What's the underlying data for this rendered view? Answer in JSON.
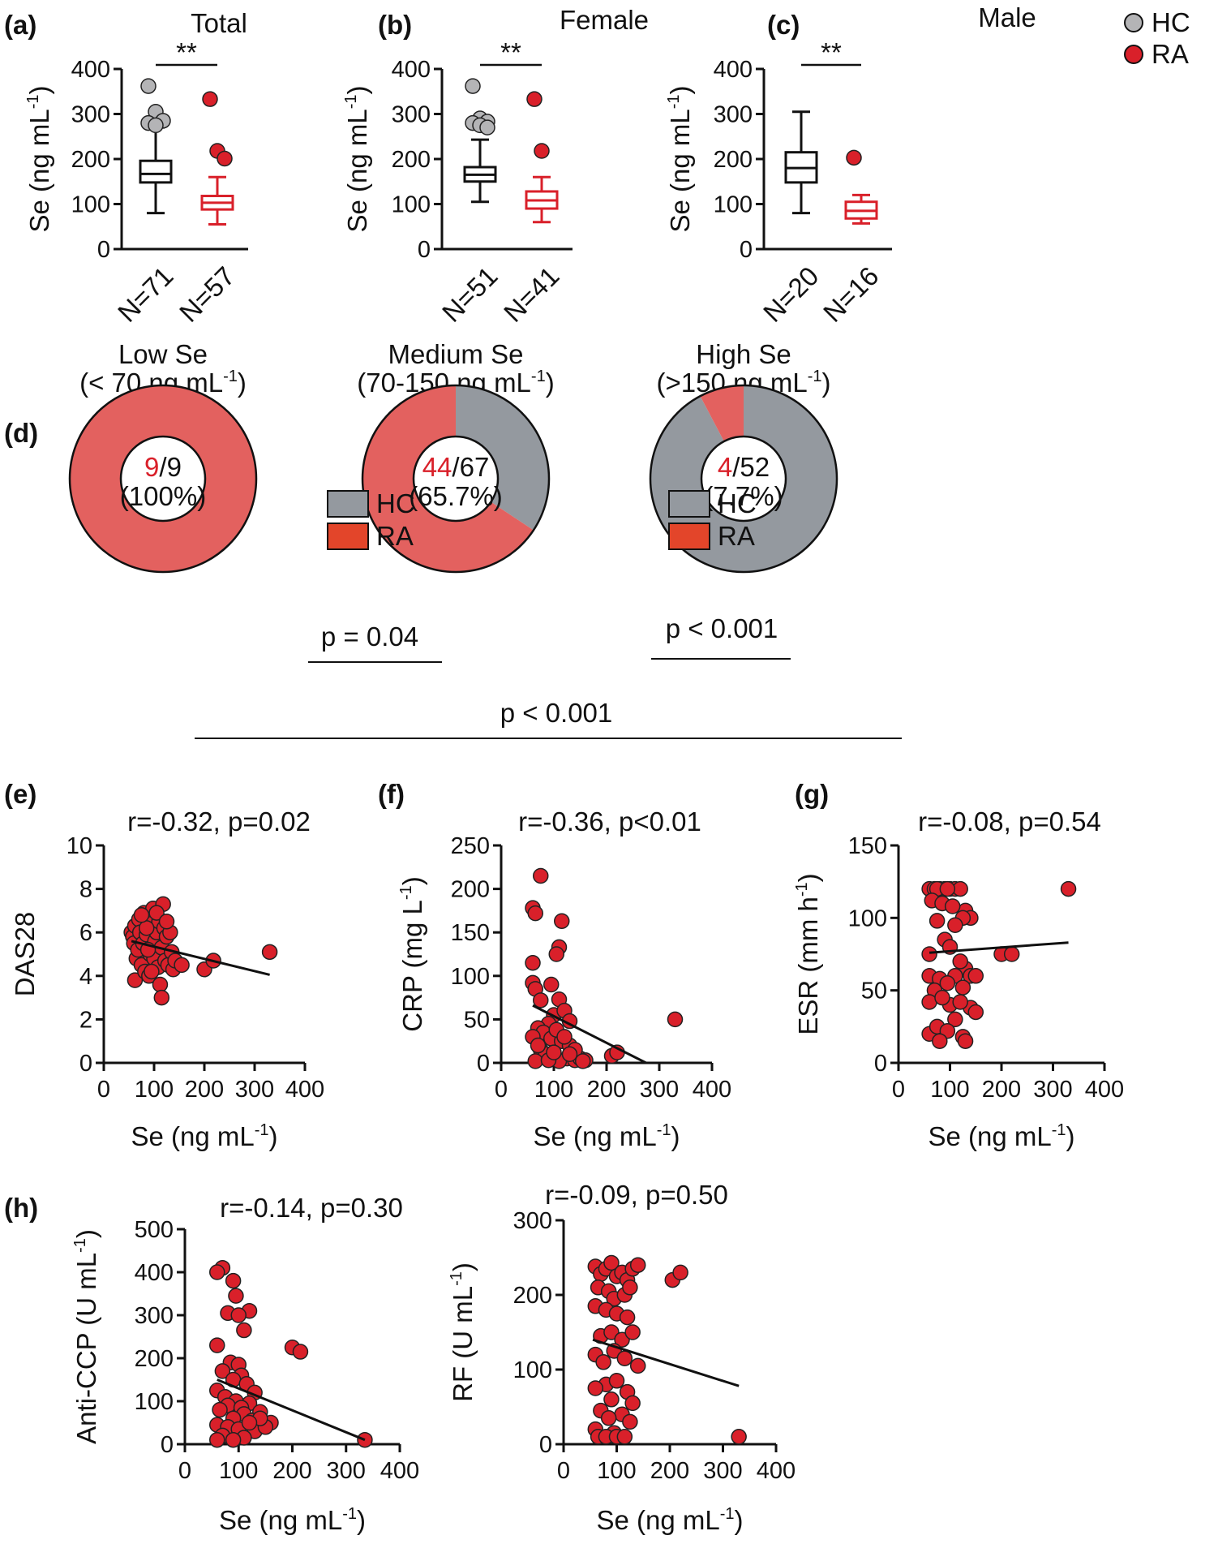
{
  "colors": {
    "hc": "#b4b4b6",
    "ra": "#d9202a",
    "hc_donut": "#94999f",
    "ra_donut": "#e3615f",
    "ra_legend_donut": "#e3452a",
    "axis": "#111111"
  },
  "legend": {
    "hc": "HC",
    "ra": "RA"
  },
  "chart_data": [
    {
      "panel": "(a)",
      "type": "box",
      "title": "Total",
      "ylabel": "Se (ng mL-1)",
      "ylim": [
        0,
        400
      ],
      "yticks": [
        "0",
        "100",
        "200",
        "300",
        "400"
      ],
      "categories": [
        "N=71",
        "N=57"
      ],
      "significance": "**",
      "series": [
        {
          "group": "HC",
          "q1": 148,
          "median": 167,
          "q3": 196,
          "whisker_low": 80,
          "whisker_high": 270,
          "outliers": [
            362,
            305,
            285,
            280,
            275
          ]
        },
        {
          "group": "RA",
          "q1": 88,
          "median": 103,
          "q3": 118,
          "whisker_low": 55,
          "whisker_high": 160,
          "outliers": [
            333,
            218,
            201
          ]
        }
      ]
    },
    {
      "panel": "(b)",
      "type": "box",
      "title": "Female",
      "ylabel": "Se (ng mL-1)",
      "ylim": [
        0,
        400
      ],
      "yticks": [
        "0",
        "100",
        "200",
        "300",
        "400"
      ],
      "categories": [
        "N=51",
        "N=41"
      ],
      "significance": "**",
      "series": [
        {
          "group": "HC",
          "q1": 150,
          "median": 165,
          "q3": 182,
          "whisker_low": 105,
          "whisker_high": 243,
          "outliers": [
            362,
            290,
            283,
            280,
            275,
            270
          ]
        },
        {
          "group": "RA",
          "q1": 90,
          "median": 108,
          "q3": 128,
          "whisker_low": 60,
          "whisker_high": 160,
          "outliers": [
            333,
            218
          ]
        }
      ]
    },
    {
      "panel": "(c)",
      "type": "box",
      "title": "Male",
      "ylabel": "Se (ng mL-1)",
      "ylim": [
        0,
        400
      ],
      "yticks": [
        "0",
        "100",
        "200",
        "300",
        "400"
      ],
      "categories": [
        "N=20",
        "N=16"
      ],
      "significance": "**",
      "series": [
        {
          "group": "HC",
          "q1": 148,
          "median": 180,
          "q3": 215,
          "whisker_low": 80,
          "whisker_high": 305,
          "outliers": []
        },
        {
          "group": "RA",
          "q1": 68,
          "median": 85,
          "q3": 105,
          "whisker_low": 57,
          "whisker_high": 120,
          "outliers": [
            203
          ]
        }
      ]
    },
    {
      "panel": "(d)",
      "type": "pie",
      "donuts": [
        {
          "title": "Low Se",
          "subtitle": "(< 70 ng mL-1)",
          "ra_count": "9",
          "total": "/9",
          "percent": "(100%)",
          "ra_fraction": 1.0
        },
        {
          "title": "Medium Se",
          "subtitle": "(70-150 ng mL-1)",
          "ra_count": "44",
          "total": "/67",
          "percent": "(65.7%)",
          "ra_fraction": 0.657
        },
        {
          "title": "High Se",
          "subtitle": "(>150 ng mL-1)",
          "ra_count": "4",
          "total": "/52",
          "percent": "(7.7%)",
          "ra_fraction": 0.077
        }
      ],
      "comparisons": [
        "p = 0.04",
        "p < 0.001",
        "p < 0.001"
      ]
    },
    {
      "panel": "(e)",
      "type": "scatter",
      "stat": "r=-0.32, p=0.02",
      "xlabel": "Se (ng mL-1)",
      "ylabel": "DAS28",
      "xlim": [
        0,
        400
      ],
      "ylim": [
        0,
        10
      ],
      "xticks": [
        "0",
        "100",
        "200",
        "300",
        "400"
      ],
      "yticks": [
        "0",
        "2",
        "4",
        "6",
        "8",
        "10"
      ],
      "fit": [
        [
          55,
          5.6
        ],
        [
          330,
          4.05
        ]
      ],
      "points": [
        [
          55,
          6.0
        ],
        [
          58,
          5.8
        ],
        [
          62,
          6.3
        ],
        [
          60,
          5.5
        ],
        [
          65,
          4.8
        ],
        [
          68,
          5.2
        ],
        [
          70,
          6.6
        ],
        [
          72,
          6.0
        ],
        [
          75,
          4.5
        ],
        [
          62,
          3.8
        ],
        [
          78,
          5.5
        ],
        [
          80,
          6.9
        ],
        [
          82,
          4.2
        ],
        [
          85,
          5.9
        ],
        [
          88,
          6.7
        ],
        [
          90,
          4.0
        ],
        [
          92,
          5.0
        ],
        [
          95,
          6.4
        ],
        [
          98,
          7.1
        ],
        [
          100,
          4.8
        ],
        [
          102,
          5.6
        ],
        [
          105,
          6.0
        ],
        [
          108,
          4.4
        ],
        [
          110,
          6.5
        ],
        [
          112,
          3.6
        ],
        [
          115,
          5.3
        ],
        [
          118,
          7.3
        ],
        [
          120,
          6.2
        ],
        [
          122,
          4.7
        ],
        [
          125,
          5.8
        ],
        [
          128,
          4.5
        ],
        [
          132,
          6.0
        ],
        [
          135,
          5.1
        ],
        [
          138,
          4.3
        ],
        [
          142,
          4.7
        ],
        [
          115,
          3.0
        ],
        [
          95,
          4.2
        ],
        [
          85,
          6.2
        ],
        [
          75,
          6.8
        ],
        [
          105,
          6.9
        ],
        [
          88,
          5.2
        ],
        [
          125,
          6.5
        ],
        [
          155,
          4.5
        ],
        [
          200,
          4.3
        ],
        [
          218,
          4.7
        ],
        [
          330,
          5.1
        ]
      ]
    },
    {
      "panel": "(f)",
      "type": "scatter",
      "stat": "r=-0.36, p<0.01",
      "xlabel": "Se (ng mL-1)",
      "ylabel": "CRP (mg L-1)",
      "xlim": [
        0,
        400
      ],
      "ylim": [
        0,
        250
      ],
      "xticks": [
        "0",
        "100",
        "200",
        "300",
        "400"
      ],
      "yticks": [
        "0",
        "50",
        "100",
        "150",
        "200",
        "250"
      ],
      "fit": [
        [
          60,
          66
        ],
        [
          275,
          0
        ]
      ],
      "points": [
        [
          75,
          215
        ],
        [
          60,
          178
        ],
        [
          65,
          172
        ],
        [
          115,
          163
        ],
        [
          110,
          133
        ],
        [
          105,
          125
        ],
        [
          60,
          115
        ],
        [
          95,
          90
        ],
        [
          60,
          92
        ],
        [
          65,
          85
        ],
        [
          75,
          72
        ],
        [
          110,
          73
        ],
        [
          100,
          55
        ],
        [
          120,
          60
        ],
        [
          130,
          48
        ],
        [
          90,
          45
        ],
        [
          70,
          40
        ],
        [
          80,
          35
        ],
        [
          60,
          30
        ],
        [
          95,
          28
        ],
        [
          115,
          25
        ],
        [
          130,
          20
        ],
        [
          75,
          15
        ],
        [
          85,
          10
        ],
        [
          100,
          8
        ],
        [
          125,
          5
        ],
        [
          140,
          3
        ],
        [
          65,
          2
        ],
        [
          110,
          2
        ],
        [
          150,
          5
        ],
        [
          160,
          3
        ],
        [
          90,
          3
        ],
        [
          105,
          38
        ],
        [
          120,
          30
        ],
        [
          140,
          15
        ],
        [
          70,
          20
        ],
        [
          130,
          10
        ],
        [
          155,
          2
        ],
        [
          100,
          12
        ],
        [
          210,
          8
        ],
        [
          220,
          12
        ],
        [
          330,
          50
        ]
      ]
    },
    {
      "panel": "(g)",
      "type": "scatter",
      "stat": "r=-0.08, p=0.54",
      "xlabel": "Se (ng mL-1)",
      "ylabel": "ESR (mm h-1)",
      "xlim": [
        0,
        400
      ],
      "ylim": [
        0,
        150
      ],
      "xticks": [
        "0",
        "100",
        "200",
        "300",
        "400"
      ],
      "yticks": [
        "0",
        "50",
        "100",
        "150"
      ],
      "fit": [
        [
          60,
          76
        ],
        [
          330,
          83
        ]
      ],
      "points": [
        [
          60,
          120
        ],
        [
          70,
          120
        ],
        [
          80,
          120
        ],
        [
          90,
          120
        ],
        [
          100,
          120
        ],
        [
          110,
          120
        ],
        [
          120,
          120
        ],
        [
          75,
          120
        ],
        [
          95,
          120
        ],
        [
          65,
          112
        ],
        [
          130,
          105
        ],
        [
          85,
          110
        ],
        [
          105,
          108
        ],
        [
          140,
          100
        ],
        [
          125,
          100
        ],
        [
          75,
          98
        ],
        [
          110,
          95
        ],
        [
          60,
          75
        ],
        [
          90,
          85
        ],
        [
          100,
          80
        ],
        [
          130,
          65
        ],
        [
          120,
          70
        ],
        [
          140,
          60
        ],
        [
          60,
          60
        ],
        [
          80,
          58
        ],
        [
          110,
          60
        ],
        [
          150,
          60
        ],
        [
          95,
          55
        ],
        [
          70,
          50
        ],
        [
          125,
          52
        ],
        [
          60,
          42
        ],
        [
          100,
          40
        ],
        [
          140,
          38
        ],
        [
          85,
          45
        ],
        [
          120,
          42
        ],
        [
          110,
          30
        ],
        [
          60,
          20
        ],
        [
          75,
          25
        ],
        [
          95,
          22
        ],
        [
          125,
          18
        ],
        [
          80,
          15
        ],
        [
          130,
          15
        ],
        [
          150,
          35
        ],
        [
          200,
          75
        ],
        [
          220,
          75
        ],
        [
          330,
          120
        ]
      ]
    },
    {
      "panel": "(h)",
      "type": "scatter",
      "stat": "r=-0.14, p=0.30",
      "xlabel": "Se (ng mL-1)",
      "ylabel": "Anti-CCP (U mL-1)",
      "xlim": [
        0,
        400
      ],
      "ylim": [
        0,
        500
      ],
      "xticks": [
        "0",
        "100",
        "200",
        "300",
        "400"
      ],
      "yticks": [
        "0",
        "100",
        "200",
        "300",
        "400",
        "500"
      ],
      "fit": [
        [
          60,
          150
        ],
        [
          335,
          10
        ]
      ],
      "points": [
        [
          70,
          410
        ],
        [
          60,
          400
        ],
        [
          90,
          380
        ],
        [
          95,
          345
        ],
        [
          120,
          310
        ],
        [
          80,
          305
        ],
        [
          100,
          300
        ],
        [
          110,
          265
        ],
        [
          60,
          230
        ],
        [
          85,
          190
        ],
        [
          100,
          185
        ],
        [
          70,
          170
        ],
        [
          105,
          160
        ],
        [
          90,
          150
        ],
        [
          115,
          140
        ],
        [
          60,
          125
        ],
        [
          130,
          120
        ],
        [
          75,
          110
        ],
        [
          95,
          100
        ],
        [
          120,
          95
        ],
        [
          80,
          90
        ],
        [
          105,
          85
        ],
        [
          65,
          80
        ],
        [
          140,
          75
        ],
        [
          110,
          70
        ],
        [
          90,
          60
        ],
        [
          125,
          55
        ],
        [
          160,
          50
        ],
        [
          60,
          45
        ],
        [
          80,
          40
        ],
        [
          100,
          35
        ],
        [
          130,
          30
        ],
        [
          70,
          20
        ],
        [
          110,
          15
        ],
        [
          90,
          10
        ],
        [
          60,
          10
        ],
        [
          150,
          40
        ],
        [
          140,
          60
        ],
        [
          120,
          50
        ],
        [
          200,
          225
        ],
        [
          215,
          215
        ],
        [
          335,
          10
        ]
      ]
    },
    {
      "panel": "",
      "type": "scatter",
      "stat": "r=-0.09, p=0.50",
      "xlabel": "Se (ng mL-1)",
      "ylabel": "RF (U mL-1)",
      "xlim": [
        0,
        400
      ],
      "ylim": [
        0,
        300
      ],
      "xticks": [
        "0",
        "100",
        "200",
        "300",
        "400"
      ],
      "yticks": [
        "0",
        "100",
        "200",
        "300"
      ],
      "fit": [
        [
          55,
          140
        ],
        [
          330,
          78
        ]
      ],
      "points": [
        [
          60,
          238
        ],
        [
          70,
          228
        ],
        [
          80,
          235
        ],
        [
          90,
          243
        ],
        [
          100,
          225
        ],
        [
          110,
          230
        ],
        [
          120,
          220
        ],
        [
          130,
          235
        ],
        [
          140,
          240
        ],
        [
          65,
          210
        ],
        [
          85,
          205
        ],
        [
          95,
          195
        ],
        [
          115,
          200
        ],
        [
          125,
          210
        ],
        [
          60,
          185
        ],
        [
          80,
          180
        ],
        [
          100,
          175
        ],
        [
          120,
          170
        ],
        [
          70,
          145
        ],
        [
          90,
          150
        ],
        [
          110,
          140
        ],
        [
          130,
          150
        ],
        [
          60,
          120
        ],
        [
          75,
          110
        ],
        [
          95,
          125
        ],
        [
          115,
          115
        ],
        [
          140,
          105
        ],
        [
          80,
          80
        ],
        [
          100,
          85
        ],
        [
          60,
          75
        ],
        [
          120,
          70
        ],
        [
          90,
          60
        ],
        [
          130,
          55
        ],
        [
          70,
          45
        ],
        [
          110,
          40
        ],
        [
          85,
          35
        ],
        [
          125,
          30
        ],
        [
          60,
          20
        ],
        [
          95,
          15
        ],
        [
          65,
          10
        ],
        [
          80,
          10
        ],
        [
          100,
          10
        ],
        [
          115,
          10
        ],
        [
          205,
          220
        ],
        [
          220,
          230
        ],
        [
          330,
          10
        ]
      ]
    }
  ]
}
